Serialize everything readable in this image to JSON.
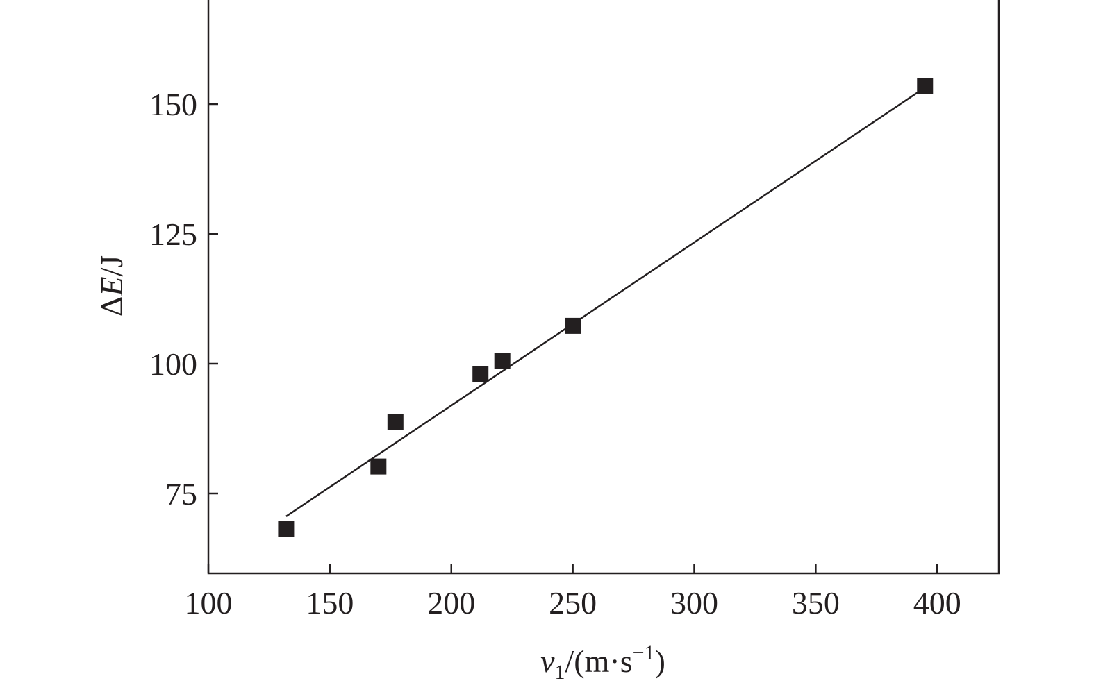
{
  "chart_data": {
    "type": "scatter",
    "title": "",
    "xlabel": {
      "var": "v",
      "sub": "1",
      "unit_open": "/(m·s",
      "sup": "−1",
      "unit_close": ")"
    },
    "ylabel": {
      "prefix": "Δ",
      "var": "E",
      "unit": "/J"
    },
    "xlim": [
      100,
      425
    ],
    "ylim": [
      60,
      170
    ],
    "xticks": [
      100,
      150,
      200,
      250,
      300,
      350,
      400
    ],
    "yticks": [
      75,
      100,
      125,
      150
    ],
    "grid": false,
    "legend": "none",
    "series": [
      {
        "marker": "square",
        "color": "#231f20",
        "points": [
          {
            "x": 132,
            "y": 68.2
          },
          {
            "x": 170,
            "y": 80.2
          },
          {
            "x": 177,
            "y": 88.8
          },
          {
            "x": 212,
            "y": 98.0
          },
          {
            "x": 221,
            "y": 100.6
          },
          {
            "x": 250,
            "y": 107.3
          },
          {
            "x": 395,
            "y": 153.5
          }
        ]
      }
    ],
    "fit_line": {
      "color": "#231f20",
      "x": [
        132,
        395
      ],
      "y": [
        70.6,
        153.2
      ]
    }
  }
}
